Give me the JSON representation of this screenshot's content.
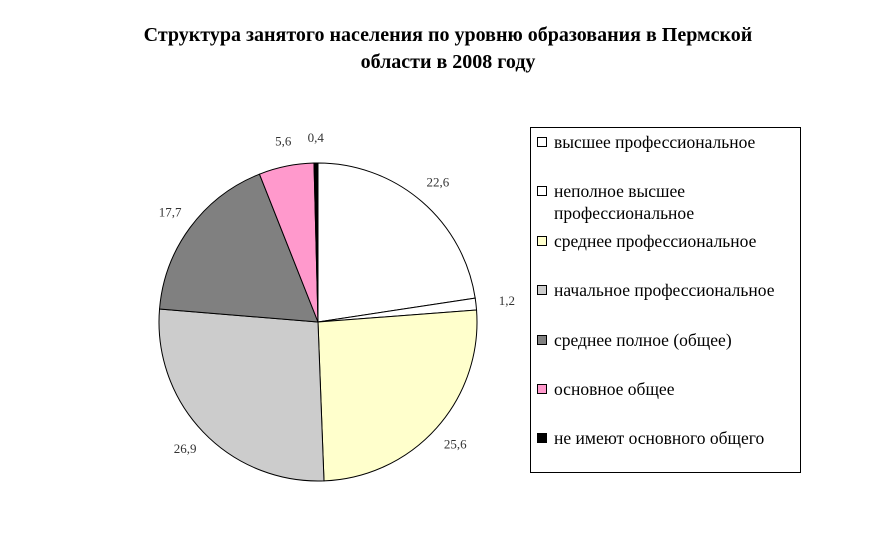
{
  "chart_data": {
    "type": "pie",
    "title_lines": [
      "Структура занятого населения по уровню образования в Пермской",
      "области в 2008 году"
    ],
    "categories": [
      "высшее профессиональное",
      "неполное высшее профессиональное",
      "среднее профессиональное",
      "начальное профессиональное",
      "среднее полное (общее)",
      "основное общее",
      "не имеют основного общего"
    ],
    "values": [
      22.6,
      1.2,
      25.6,
      26.9,
      17.7,
      5.6,
      0.4
    ],
    "value_labels": [
      "22,6",
      "1,2",
      "25,6",
      "26,9",
      "17,7",
      "5,6",
      "0,4"
    ],
    "colors": [
      "#ffffff",
      "#ffffff",
      "#ffffcc",
      "#cccccc",
      "#808080",
      "#ff99cc",
      "#000000"
    ],
    "start_angle": "12 o'clock",
    "direction": "clockwise",
    "legend_position": "right"
  }
}
